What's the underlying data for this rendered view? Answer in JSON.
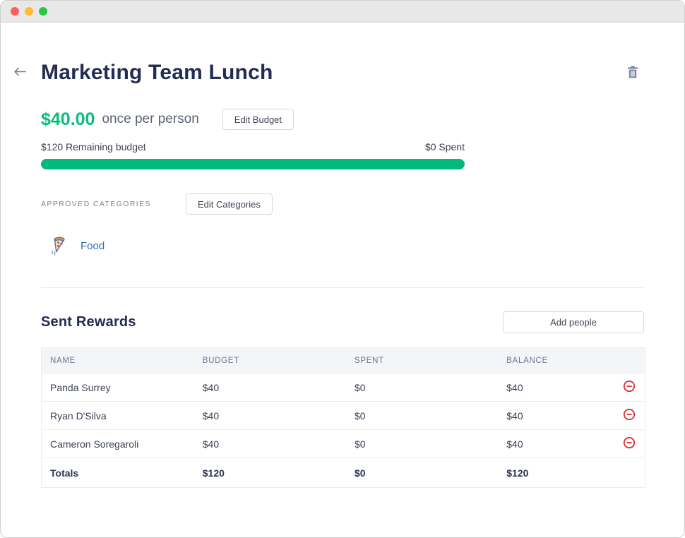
{
  "window": {
    "traffic_lights": [
      "close",
      "minimize",
      "zoom"
    ]
  },
  "header": {
    "title": "Marketing Team Lunch",
    "back_icon": "arrow-left",
    "delete_icon": "trash"
  },
  "budget": {
    "amount": "$40.00",
    "frequency": "once per person",
    "edit_button_label": "Edit Budget",
    "remaining_label": "$120 Remaining budget",
    "spent_label": "$0 Spent",
    "progress_percent": 100
  },
  "categories": {
    "section_label": "APPROVED CATEGORIES",
    "edit_button_label": "Edit Categories",
    "items": [
      {
        "icon": "pizza-icon",
        "name": "Food"
      }
    ]
  },
  "rewards": {
    "title": "Sent Rewards",
    "add_button_label": "Add people",
    "table": {
      "headers": [
        "NAME",
        "BUDGET",
        "SPENT",
        "BALANCE"
      ],
      "rows": [
        {
          "name": "Panda Surrey",
          "budget": "$40",
          "spent": "$0",
          "balance": "$40",
          "action_icon": "minus-circle"
        },
        {
          "name": "Ryan D'Silva",
          "budget": "$40",
          "spent": "$0",
          "balance": "$40",
          "action_icon": "minus-circle"
        },
        {
          "name": "Cameron Soregaroli",
          "budget": "$40",
          "spent": "$0",
          "balance": "$40",
          "action_icon": "minus-circle"
        }
      ],
      "totals": {
        "label": "Totals",
        "budget": "$120",
        "spent": "$0",
        "balance": "$120"
      }
    }
  },
  "colors": {
    "accent_green": "#00ba7d",
    "title_navy": "#232c51",
    "link_blue": "#2e6db4",
    "danger_red": "#d92d2d",
    "table_header_bg": "#f4f5f8"
  }
}
